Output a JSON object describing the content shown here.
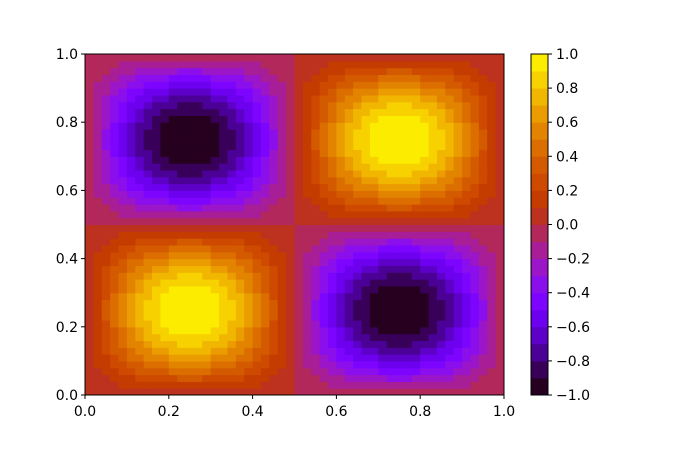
{
  "chart_data": {
    "type": "heatmap",
    "subtype": "filled-contour",
    "function": "sin(2*pi*x) * sin(2*pi*y)",
    "grid_step": 0.02,
    "xlim": [
      0,
      1
    ],
    "ylim": [
      0,
      1
    ],
    "x_ticks": [
      "0.0",
      "0.2",
      "0.4",
      "0.6",
      "0.8",
      "1.0"
    ],
    "y_ticks": [
      "0.0",
      "0.2",
      "0.4",
      "0.6",
      "0.8",
      "1.0"
    ],
    "colorbar": {
      "min": -1.0,
      "max": 1.0,
      "levels": 20,
      "tick_values": [
        -1.0,
        -0.8,
        -0.6,
        -0.4,
        -0.2,
        0.0,
        0.2,
        0.4,
        0.6,
        0.8,
        1.0
      ],
      "tick_labels": [
        "−1.0",
        "−0.8",
        "−0.6",
        "−0.4",
        "−0.2",
        "0.0",
        "0.2",
        "0.4",
        "0.6",
        "0.8",
        "1.0"
      ],
      "colormap": "gnuplot",
      "band_colors": [
        "#26001f",
        "#39005a",
        "#4b0096",
        "#5d00c8",
        "#6e00f0",
        "#7d05ff",
        "#8b0eed",
        "#9a16c8",
        "#a71e96",
        "#b2285a",
        "#bc321e",
        "#c43c00",
        "#cd4a00",
        "#d45a00",
        "#dc6e00",
        "#e38400",
        "#eb9c00",
        "#f1b600",
        "#f7d100",
        "#fcec00"
      ]
    },
    "xlabel": "",
    "ylabel": "",
    "title": ""
  }
}
